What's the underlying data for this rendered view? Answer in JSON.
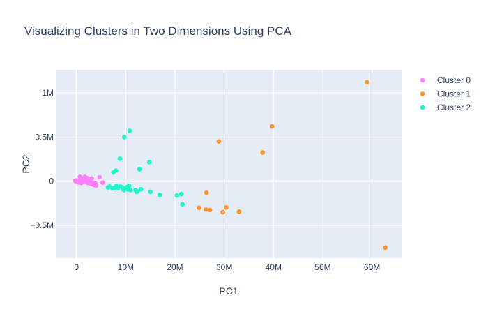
{
  "chart_data": {
    "type": "scatter",
    "title": "Visualizing Clusters in Two Dimensions Using PCA",
    "xlabel": "PC1",
    "ylabel": "PC2",
    "xlim": [
      -4200000,
      66000000
    ],
    "ylim": [
      -870000,
      1260000
    ],
    "x_ticks": [
      {
        "value": 0,
        "label": "0"
      },
      {
        "value": 10000000,
        "label": "10M"
      },
      {
        "value": 20000000,
        "label": "20M"
      },
      {
        "value": 30000000,
        "label": "30M"
      },
      {
        "value": 40000000,
        "label": "40M"
      },
      {
        "value": 50000000,
        "label": "50M"
      },
      {
        "value": 60000000,
        "label": "60M"
      }
    ],
    "y_ticks": [
      {
        "value": -500000,
        "label": "−0.5M"
      },
      {
        "value": 0,
        "label": "0"
      },
      {
        "value": 500000,
        "label": "0.5M"
      },
      {
        "value": 1000000,
        "label": "1M"
      }
    ],
    "grid": true,
    "legend_position": "top-right",
    "plot_background": "#e5ecf6",
    "series": [
      {
        "name": "Cluster 0",
        "color": "#ff7ff9",
        "points": [
          [
            -300000,
            5000
          ],
          [
            -100000,
            0
          ],
          [
            100000,
            8000
          ],
          [
            300000,
            -5000
          ],
          [
            500000,
            2000
          ],
          [
            600000,
            -15000
          ],
          [
            700000,
            50000
          ],
          [
            900000,
            10000
          ],
          [
            1000000,
            -20000
          ],
          [
            1100000,
            0
          ],
          [
            1300000,
            30000
          ],
          [
            1500000,
            15000
          ],
          [
            1700000,
            50000
          ],
          [
            1800000,
            10000
          ],
          [
            2000000,
            -10000
          ],
          [
            2200000,
            35000
          ],
          [
            2400000,
            -20000
          ],
          [
            2600000,
            25000
          ],
          [
            2800000,
            0
          ],
          [
            3000000,
            -30000
          ],
          [
            3100000,
            30000
          ],
          [
            3300000,
            -20000
          ],
          [
            3500000,
            -40000
          ],
          [
            3800000,
            -20000
          ],
          [
            4000000,
            -50000
          ],
          [
            4700000,
            45000
          ],
          [
            5300000,
            -15000
          ],
          [
            1200000,
            -8000
          ],
          [
            400000,
            -12000
          ],
          [
            2100000,
            5000
          ]
        ]
      },
      {
        "name": "Cluster 1",
        "color": "#fe922f",
        "points": [
          [
            59000000,
            1120000
          ],
          [
            39700000,
            620000
          ],
          [
            37800000,
            325000
          ],
          [
            28900000,
            450000
          ],
          [
            26400000,
            -130000
          ],
          [
            62700000,
            -750000
          ],
          [
            24900000,
            -300000
          ],
          [
            26300000,
            -320000
          ],
          [
            27100000,
            -325000
          ],
          [
            29700000,
            -350000
          ],
          [
            30400000,
            -295000
          ],
          [
            33000000,
            -345000
          ]
        ]
      },
      {
        "name": "Cluster 2",
        "color": "#1ff5c8",
        "points": [
          [
            10800000,
            570000
          ],
          [
            9700000,
            500000
          ],
          [
            8800000,
            255000
          ],
          [
            14800000,
            215000
          ],
          [
            12800000,
            135000
          ],
          [
            8000000,
            120000
          ],
          [
            7500000,
            100000
          ],
          [
            6400000,
            -70000
          ],
          [
            6700000,
            -60000
          ],
          [
            7300000,
            -80000
          ],
          [
            7700000,
            -75000
          ],
          [
            8100000,
            -55000
          ],
          [
            8400000,
            -80000
          ],
          [
            8900000,
            -60000
          ],
          [
            9300000,
            -70000
          ],
          [
            9600000,
            -100000
          ],
          [
            9900000,
            -85000
          ],
          [
            10300000,
            -65000
          ],
          [
            10700000,
            -50000
          ],
          [
            11000000,
            -100000
          ],
          [
            12000000,
            -100000
          ],
          [
            12400000,
            -115000
          ],
          [
            13100000,
            -90000
          ],
          [
            15000000,
            -120000
          ],
          [
            16900000,
            -155000
          ],
          [
            20400000,
            -160000
          ],
          [
            21300000,
            -145000
          ],
          [
            21500000,
            -260000
          ],
          [
            10400000,
            -90000
          ],
          [
            12200000,
            -120000
          ]
        ]
      }
    ]
  }
}
